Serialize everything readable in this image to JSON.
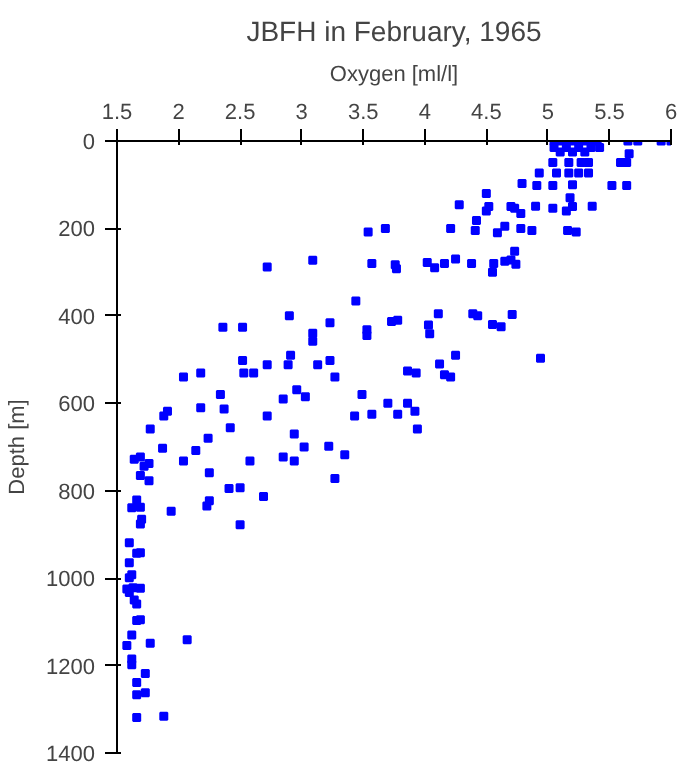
{
  "chart_data": {
    "type": "scatter",
    "title": "JBFH in February, 1965",
    "xlabel": "Oxygen [ml/l]",
    "ylabel": "Depth [m]",
    "xlim": [
      1.5,
      6
    ],
    "xticks": [
      1.5,
      2,
      2.5,
      3,
      3.5,
      4,
      4.5,
      5,
      5.5,
      6
    ],
    "ylim": [
      1400,
      0
    ],
    "yticks": [
      0,
      200,
      400,
      600,
      800,
      1000,
      1200,
      1400
    ],
    "grid": false,
    "marker": "square",
    "series": [
      {
        "color": "#0000ff",
        "x": [
          5.05,
          5.1,
          5.15,
          5.2,
          5.25,
          5.3,
          5.35,
          5.4,
          5.65,
          5.73,
          5.92,
          6.0,
          5.05,
          5.15,
          5.25,
          5.35,
          5.42,
          5.1,
          5.2,
          5.3,
          5.66,
          5.04,
          5.17,
          5.27,
          5.33,
          5.59,
          5.64,
          4.93,
          5.07,
          5.17,
          5.25,
          5.33,
          4.79,
          4.91,
          5.04,
          5.2,
          5.52,
          5.64,
          5.18,
          4.5,
          5.36,
          4.28,
          4.52,
          4.7,
          4.9,
          5.04,
          5.2,
          5.15,
          4.5,
          4.73,
          4.78,
          4.42,
          4.65,
          4.21,
          4.78,
          4.87,
          5.16,
          5.23,
          4.41,
          4.59,
          3.54,
          3.68,
          4.73,
          4.02,
          4.25,
          4.16,
          4.08,
          4.38,
          4.56,
          4.65,
          4.7,
          4.74,
          4.55,
          3.76,
          3.77,
          3.57,
          3.09,
          2.72,
          3.44,
          2.36,
          2.52,
          2.9,
          3.23,
          3.73,
          3.78,
          4.11,
          4.39,
          4.43,
          4.71,
          4.55,
          4.62,
          4.03,
          3.53,
          3.09,
          2.52,
          2.91,
          3.09,
          3.53,
          4.04,
          4.94,
          2.04,
          2.18,
          2.53,
          2.61,
          2.72,
          2.89,
          3.13,
          3.23,
          3.27,
          3.86,
          3.93,
          4.12,
          4.16,
          4.21,
          4.25,
          2.34,
          2.96,
          3.03,
          2.85,
          3.49,
          3.7,
          3.86,
          3.78,
          3.92,
          3.43,
          3.57,
          3.94,
          1.77,
          1.88,
          1.91,
          2.18,
          2.37,
          2.42,
          2.72,
          2.94,
          3.02,
          3.22,
          3.35,
          3.27,
          2.85,
          2.94,
          2.58,
          2.04,
          2.14,
          2.24,
          1.87,
          1.64,
          1.69,
          1.72,
          1.76,
          1.69,
          1.76,
          2.25,
          2.41,
          2.5,
          2.69,
          2.25,
          2.23,
          1.94,
          2.5,
          1.66,
          1.62,
          1.69,
          1.7,
          1.69,
          1.6,
          1.66,
          1.69,
          1.6,
          1.62,
          1.6,
          1.58,
          1.6,
          1.63,
          1.69,
          1.64,
          1.66,
          1.66,
          1.69,
          1.58,
          1.62,
          1.77,
          2.07,
          1.62,
          1.62,
          1.73,
          1.66,
          1.66,
          1.73,
          1.66,
          1.88
        ],
        "values": [
          0,
          0,
          0,
          0,
          0,
          0,
          0,
          0,
          0,
          0,
          0,
          0,
          15,
          15,
          15,
          15,
          15,
          25,
          25,
          25,
          29,
          49,
          49,
          49,
          49,
          49,
          49,
          73,
          73,
          73,
          73,
          73,
          97,
          102,
          102,
          100,
          102,
          102,
          130,
          120,
          149,
          146,
          150,
          150,
          149,
          154,
          150,
          160,
          160,
          154,
          166,
          182,
          195,
          200,
          200,
          205,
          205,
          208,
          205,
          210,
          208,
          200,
          252,
          278,
          270,
          280,
          290,
          280,
          280,
          275,
          272,
          282,
          300,
          283,
          292,
          280,
          273,
          288,
          366,
          426,
          426,
          400,
          416,
          413,
          410,
          395,
          395,
          400,
          397,
          420,
          425,
          421,
          432,
          440,
          502,
          490,
          458,
          445,
          441,
          497,
          540,
          531,
          531,
          531,
          512,
          512,
          512,
          502,
          540,
          526,
          531,
          510,
          535,
          540,
          490,
          580,
          569,
          585,
          590,
          580,
          600,
          600,
          625,
          618,
          629,
          625,
          659,
          659,
          629,
          618,
          610,
          613,
          656,
          629,
          670,
          700,
          698,
          718,
          772,
          723,
          732,
          732,
          732,
          708,
          680,
          703,
          728,
          723,
          744,
          738,
          765,
          777,
          759,
          795,
          793,
          813,
          823,
          835,
          847,
          878,
          821,
          839,
          838,
          865,
          876,
          919,
          943,
          942,
          965,
          992,
          999,
          1025,
          1033,
          1022,
          1023,
          1050,
          1059,
          1097,
          1095,
          1154,
          1130,
          1149,
          1141,
          1185,
          1198,
          1218,
          1239,
          1267,
          1262,
          1319,
          1316
        ]
      }
    ]
  }
}
